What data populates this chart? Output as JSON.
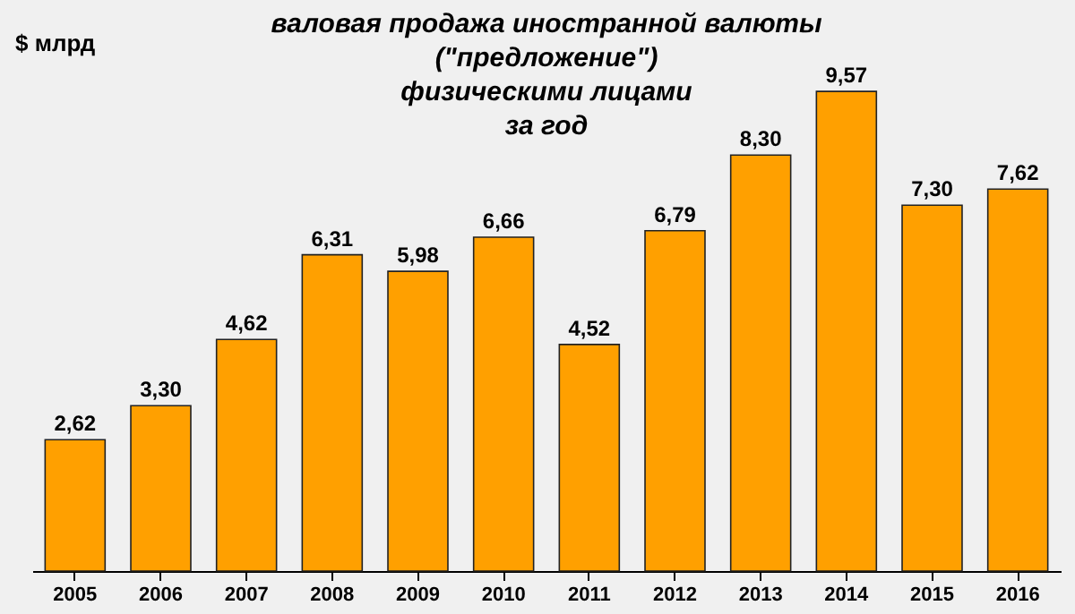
{
  "chart_data": {
    "type": "bar",
    "title": "валовая продажа иностранной валюты\n(\"предложение\")\nфизическими лицами\nза год",
    "ylabel": "$ млрд",
    "categories": [
      "2005",
      "2006",
      "2007",
      "2008",
      "2009",
      "2010",
      "2011",
      "2012",
      "2013",
      "2014",
      "2015",
      "2016"
    ],
    "values": [
      2.62,
      3.3,
      4.62,
      6.31,
      5.98,
      6.66,
      4.52,
      6.79,
      8.3,
      9.57,
      7.3,
      7.62
    ],
    "value_labels": [
      "2,62",
      "3,30",
      "4,62",
      "6,31",
      "5,98",
      "6,66",
      "4,52",
      "6,79",
      "8,30",
      "9,57",
      "7,30",
      "7,62"
    ],
    "color": "#ffa000",
    "grid": false
  }
}
